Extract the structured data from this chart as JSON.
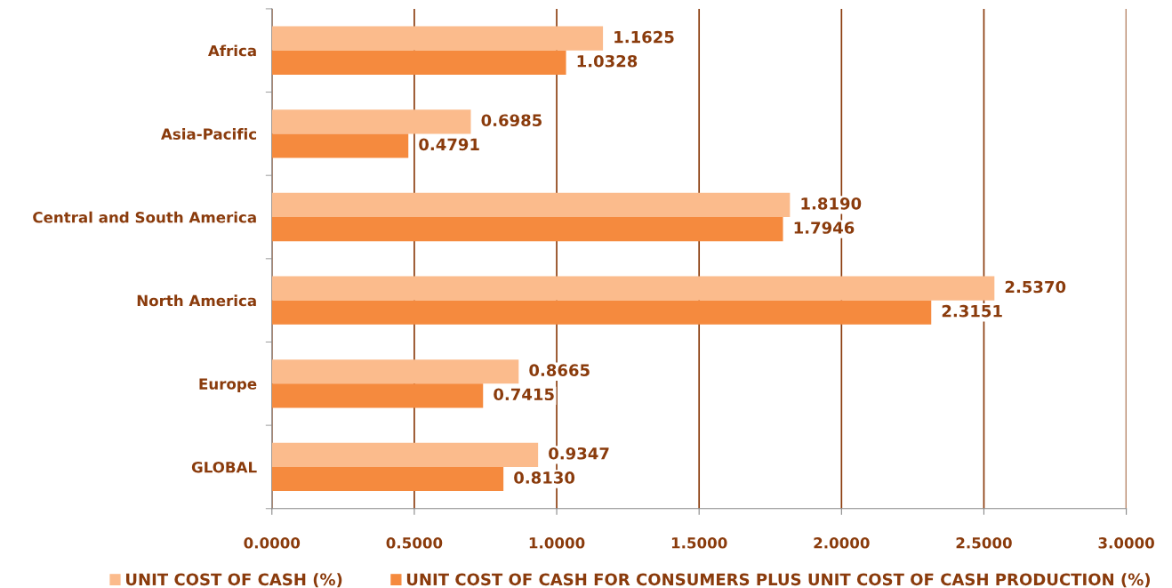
{
  "chart_data": {
    "type": "bar",
    "orientation": "horizontal",
    "categories": [
      "Africa",
      "Asia-Pacific",
      "Central and South America",
      "North America",
      "Europe",
      "GLOBAL"
    ],
    "series": [
      {
        "name": "UNIT COST OF CASH (%)",
        "color": "#fbbb8c",
        "values": [
          1.1625,
          0.6985,
          1.819,
          2.537,
          0.8665,
          0.9347
        ],
        "value_labels": [
          "1.1625",
          "0.6985",
          "1.8190",
          "2.5370",
          "0.8665",
          "0.9347"
        ]
      },
      {
        "name": "UNIT COST OF CASH FOR CONSUMERS PLUS UNIT COST OF CASH PRODUCTION (%)",
        "color": "#f58a3e",
        "values": [
          1.0328,
          0.4791,
          1.7946,
          2.3151,
          0.7415,
          0.813
        ],
        "value_labels": [
          "1.0328",
          "0.4791",
          "1.7946",
          "2.3151",
          "0.7415",
          "0.8130"
        ]
      }
    ],
    "xlim": [
      0,
      3
    ],
    "xticks": [
      {
        "value": 0,
        "label": "0.0000"
      },
      {
        "value": 0.5,
        "label": "0.5000"
      },
      {
        "value": 1,
        "label": "1.0000"
      },
      {
        "value": 1.5,
        "label": "1.5000"
      },
      {
        "value": 2,
        "label": "2.0000"
      },
      {
        "value": 2.5,
        "label": "2.5000"
      },
      {
        "value": 3,
        "label": "3.0000"
      }
    ],
    "grid": "x",
    "legend": "bottom"
  }
}
